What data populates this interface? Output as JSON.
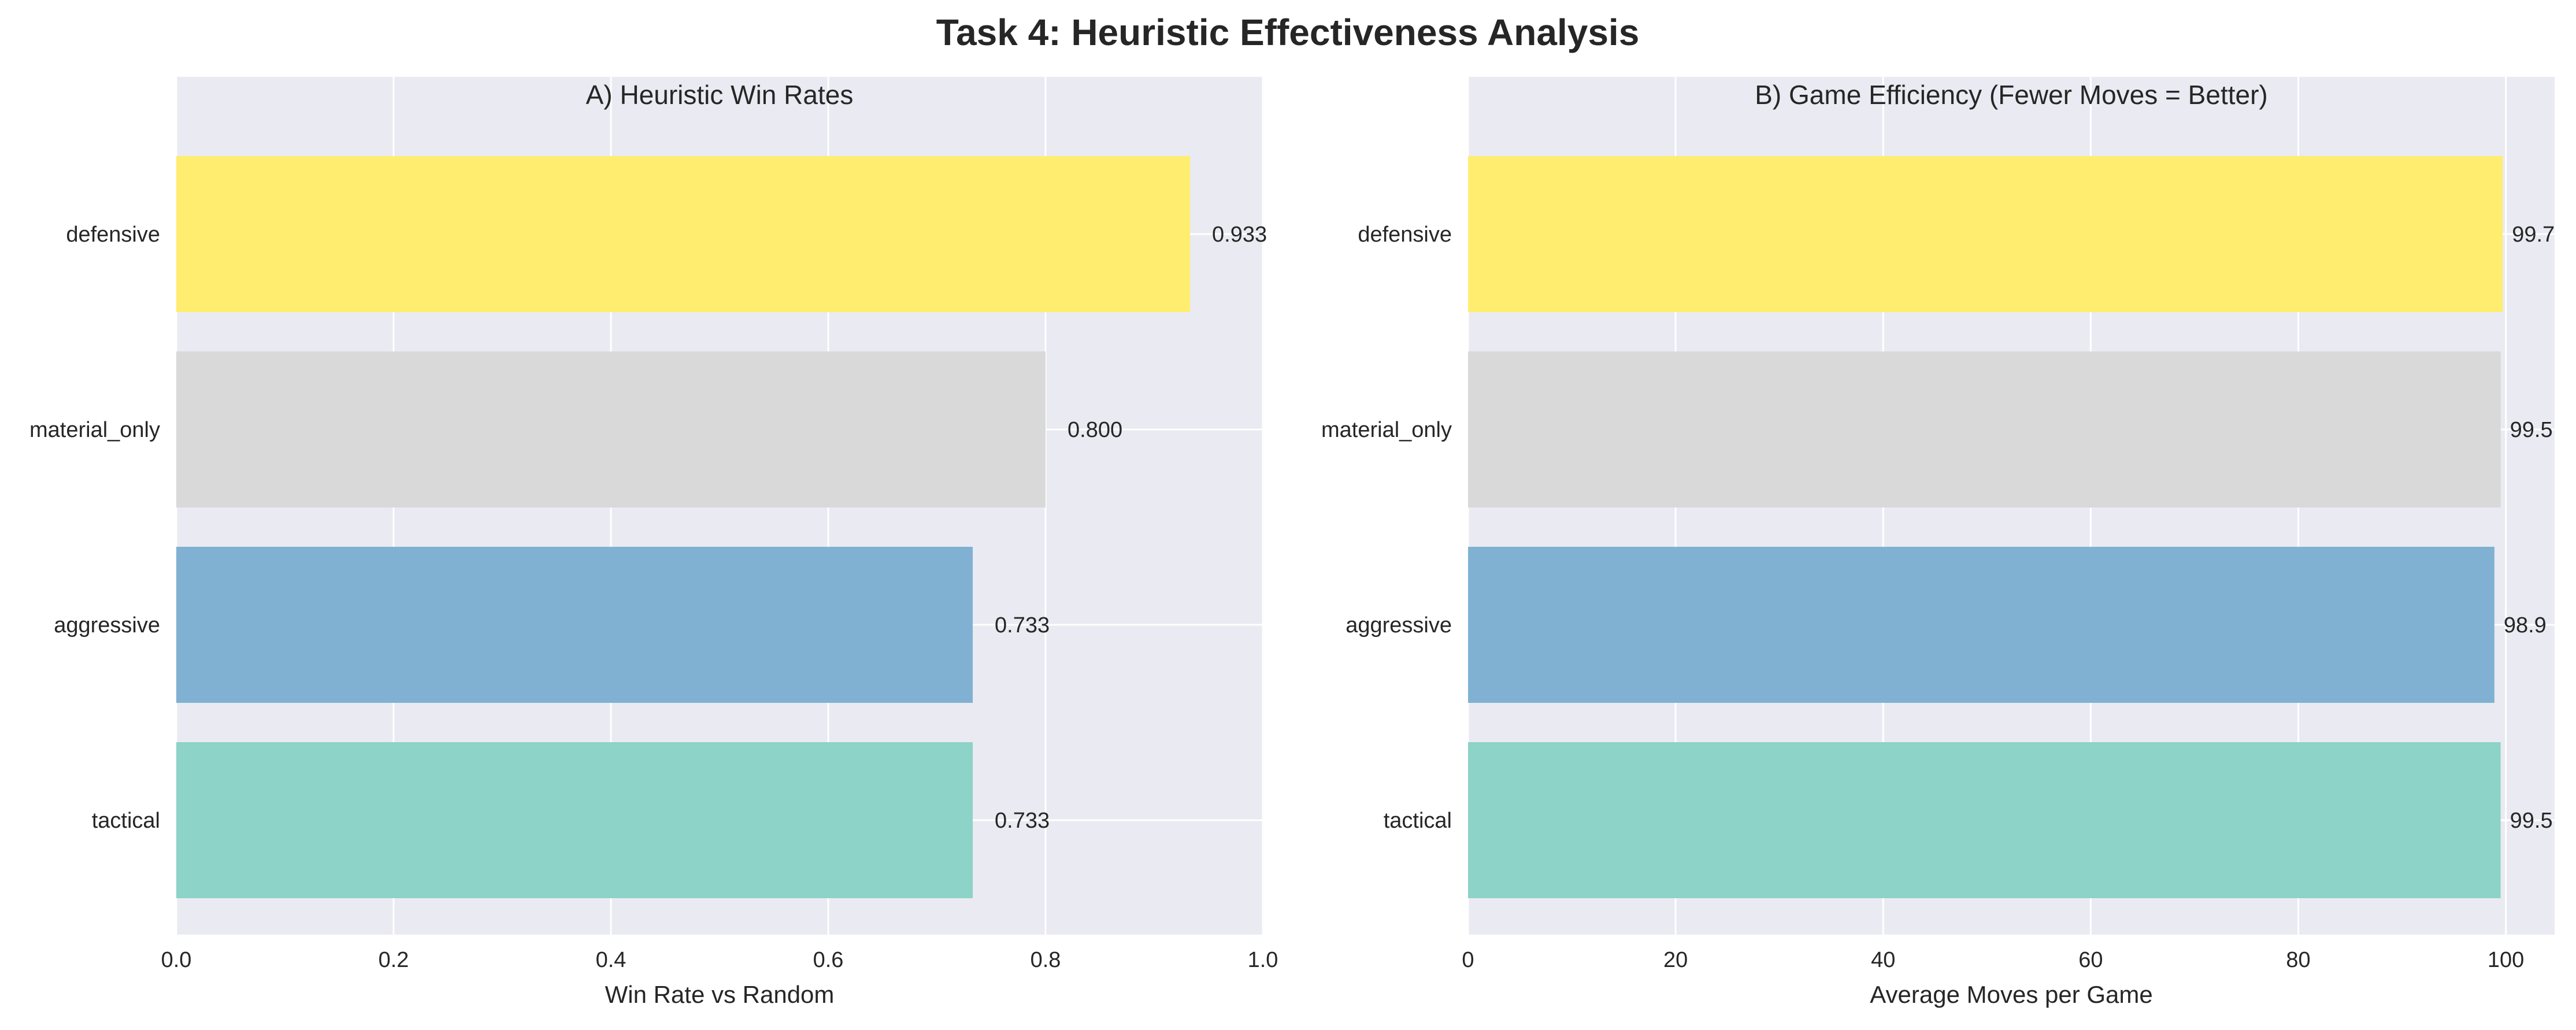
{
  "figure_title": "Task 4: Heuristic Effectiveness Analysis",
  "colors": {
    "axes_background": "#eaeaf2",
    "grid": "#ffffff",
    "text": "#262626"
  },
  "chart_data": [
    {
      "type": "bar",
      "orientation": "horizontal",
      "title": "A) Heuristic Win Rates",
      "xlabel": "Win Rate vs Random",
      "ylabel": "",
      "categories": [
        "defensive",
        "material_only",
        "aggressive",
        "tactical"
      ],
      "values": [
        0.933,
        0.8,
        0.733,
        0.733
      ],
      "value_labels": [
        "0.933",
        "0.800",
        "0.733",
        "0.733"
      ],
      "colors": [
        "#ffed6f",
        "#d9d9d9",
        "#80b1d3",
        "#8dd3c7"
      ],
      "xlim": [
        0,
        1.0
      ],
      "xticks": [
        0,
        0.2,
        0.4,
        0.6,
        0.8,
        1.0
      ],
      "xtick_labels": [
        "0.0",
        "0.2",
        "0.4",
        "0.6",
        "0.8",
        "1.0"
      ],
      "grid": true
    },
    {
      "type": "bar",
      "orientation": "horizontal",
      "title": "B) Game Efficiency (Fewer Moves = Better)",
      "xlabel": "Average Moves per Game",
      "ylabel": "",
      "categories": [
        "defensive",
        "material_only",
        "aggressive",
        "tactical"
      ],
      "values": [
        99.7,
        99.5,
        98.9,
        99.5
      ],
      "value_labels": [
        "99.7",
        "99.5",
        "98.9",
        "99.5"
      ],
      "colors": [
        "#ffed6f",
        "#d9d9d9",
        "#80b1d3",
        "#8dd3c7"
      ],
      "xlim": [
        0,
        104.7
      ],
      "xticks": [
        0,
        20,
        40,
        60,
        80,
        100
      ],
      "xtick_labels": [
        "0",
        "20",
        "40",
        "60",
        "80",
        "100"
      ],
      "grid": true
    }
  ]
}
